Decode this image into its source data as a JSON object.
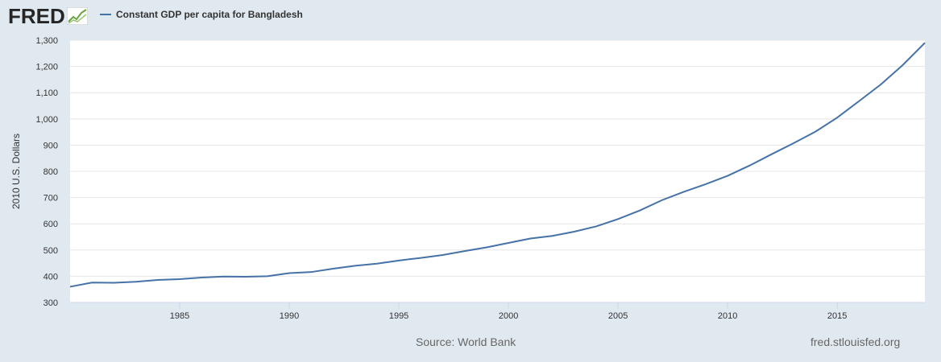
{
  "header": {
    "logo_text": "FRED",
    "logo_mark": "fred-chart-mark-icon"
  },
  "legend": {
    "series_label": "Constant GDP per capita for Bangladesh"
  },
  "footer": {
    "source": "Source: World Bank",
    "site": "fred.stlouisfed.org"
  },
  "colors": {
    "line": "#4572a7",
    "background": "#e1e9f0",
    "plot_bg": "#ffffff",
    "grid": "#e6e6e6"
  },
  "chart_data": {
    "type": "line",
    "title": "",
    "ylabel": "2010 U.S. Dollars",
    "xlabel": "",
    "xlim": [
      1980,
      2019
    ],
    "ylim": [
      300,
      1300
    ],
    "yticks": [
      300,
      400,
      500,
      600,
      700,
      800,
      900,
      1000,
      1100,
      1200,
      1300
    ],
    "ytick_labels": [
      "300",
      "400",
      "500",
      "600",
      "700",
      "800",
      "900",
      "1,000",
      "1,100",
      "1,200",
      "1,300"
    ],
    "xticks": [
      1985,
      1990,
      1995,
      2000,
      2005,
      2010,
      2015
    ],
    "xtick_labels": [
      "1985",
      "1990",
      "1995",
      "2000",
      "2005",
      "2010",
      "2015"
    ],
    "grid": true,
    "legend_position": "top-left",
    "series": [
      {
        "name": "Constant GDP per capita for Bangladesh",
        "x": [
          1980,
          1981,
          1982,
          1983,
          1984,
          1985,
          1986,
          1987,
          1988,
          1989,
          1990,
          1991,
          1992,
          1993,
          1994,
          1995,
          1996,
          1997,
          1998,
          1999,
          2000,
          2001,
          2002,
          2003,
          2004,
          2005,
          2006,
          2007,
          2008,
          2009,
          2010,
          2011,
          2012,
          2013,
          2014,
          2015,
          2016,
          2017,
          2018,
          2019
        ],
        "values": [
          360,
          376,
          375,
          379,
          386,
          389,
          395,
          399,
          398,
          400,
          412,
          416,
          429,
          440,
          448,
          460,
          470,
          481,
          496,
          510,
          527,
          544,
          554,
          570,
          590,
          618,
          651,
          690,
          722,
          751,
          783,
          822,
          865,
          907,
          951,
          1005,
          1068,
          1132,
          1206,
          1290
        ]
      }
    ]
  }
}
